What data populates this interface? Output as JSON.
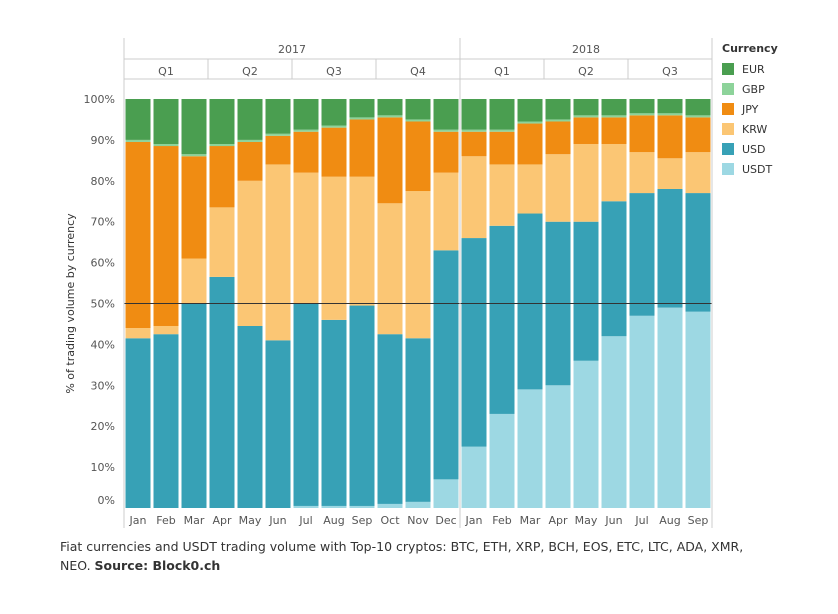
{
  "chart_data": {
    "type": "bar",
    "stacked": "100%",
    "ylabel": "% of trading volume by currency",
    "yticks": [
      "0%",
      "10%",
      "20%",
      "30%",
      "40%",
      "50%",
      "60%",
      "70%",
      "80%",
      "90%",
      "100%"
    ],
    "ylim": [
      0,
      100
    ],
    "reference_line": 50,
    "years": [
      {
        "label": "2017",
        "quarters": [
          {
            "label": "Q1",
            "months": [
              "Jan",
              "Feb",
              "Mar"
            ]
          },
          {
            "label": "Q2",
            "months": [
              "Apr",
              "May",
              "Jun"
            ]
          },
          {
            "label": "Q3",
            "months": [
              "Jul",
              "Aug",
              "Sep"
            ]
          },
          {
            "label": "Q4",
            "months": [
              "Oct",
              "Nov",
              "Dec"
            ]
          }
        ]
      },
      {
        "label": "2018",
        "quarters": [
          {
            "label": "Q1",
            "months": [
              "Jan",
              "Feb",
              "Mar"
            ]
          },
          {
            "label": "Q2",
            "months": [
              "Apr",
              "May",
              "Jun"
            ]
          },
          {
            "label": "Q3",
            "months": [
              "Jul",
              "Aug",
              "Sep"
            ]
          }
        ]
      }
    ],
    "categories": [
      "Jan 2017",
      "Feb 2017",
      "Mar 2017",
      "Apr 2017",
      "May 2017",
      "Jun 2017",
      "Jul 2017",
      "Aug 2017",
      "Sep 2017",
      "Oct 2017",
      "Nov 2017",
      "Dec 2017",
      "Jan 2018",
      "Feb 2018",
      "Mar 2018",
      "Apr 2018",
      "May 2018",
      "Jun 2018",
      "Jul 2018",
      "Aug 2018",
      "Sep 2018"
    ],
    "series": [
      {
        "name": "USDT",
        "color": "#9dd8e3",
        "values": [
          0,
          0,
          0,
          0,
          0,
          0,
          0.5,
          0.5,
          0.5,
          1,
          1.5,
          7,
          15,
          23,
          29,
          30,
          36,
          42,
          47,
          49,
          48
        ]
      },
      {
        "name": "USD",
        "color": "#37a1b6",
        "values": [
          41.5,
          42.5,
          50,
          56.5,
          44.5,
          41,
          49.5,
          45.5,
          49,
          41.5,
          40,
          56,
          51,
          46,
          43,
          40,
          34,
          33,
          30,
          29,
          29
        ]
      },
      {
        "name": "KRW",
        "color": "#fbc674",
        "values": [
          2.5,
          2,
          11,
          17,
          35.5,
          43,
          32,
          35,
          31.5,
          32,
          36,
          19,
          20,
          15,
          12,
          16.5,
          19,
          14,
          10,
          7.5,
          10
        ]
      },
      {
        "name": "JPY",
        "color": "#f08c12",
        "values": [
          45.5,
          44,
          25,
          15,
          9.5,
          7,
          10,
          12,
          14,
          21,
          17,
          10,
          6,
          8,
          10,
          8,
          6.5,
          6.5,
          9,
          10.5,
          8.5
        ]
      },
      {
        "name": "GBP",
        "color": "#8dd39a",
        "values": [
          0.5,
          0.5,
          0.5,
          0.5,
          0.5,
          0.5,
          0.5,
          0.5,
          0.5,
          0.5,
          0.5,
          0.5,
          0.5,
          0.5,
          0.5,
          0.5,
          0.5,
          0.5,
          0.5,
          0.5,
          0.5
        ]
      },
      {
        "name": "EUR",
        "color": "#4a9e50",
        "values": [
          10,
          11,
          13.5,
          11,
          10,
          8.5,
          7.5,
          6.5,
          4.5,
          4,
          5,
          7.5,
          7.5,
          7.5,
          5.5,
          5,
          4,
          4,
          3.5,
          3.5,
          4
        ]
      }
    ],
    "legend": {
      "title": "Currency",
      "placement": "right",
      "items": [
        {
          "name": "EUR",
          "color": "#4a9e50"
        },
        {
          "name": "GBP",
          "color": "#8dd39a"
        },
        {
          "name": "JPY",
          "color": "#f08c12"
        },
        {
          "name": "KRW",
          "color": "#fbc674"
        },
        {
          "name": "USD",
          "color": "#37a1b6"
        },
        {
          "name": "USDT",
          "color": "#9dd8e3"
        }
      ]
    }
  },
  "caption": {
    "text": "Fiat currencies and USDT trading volume with Top-10 cryptos: BTC, ETH, XRP, BCH, EOS, ETC, LTC, ADA, XMR, NEO.",
    "source": "Source: Block0.ch"
  }
}
